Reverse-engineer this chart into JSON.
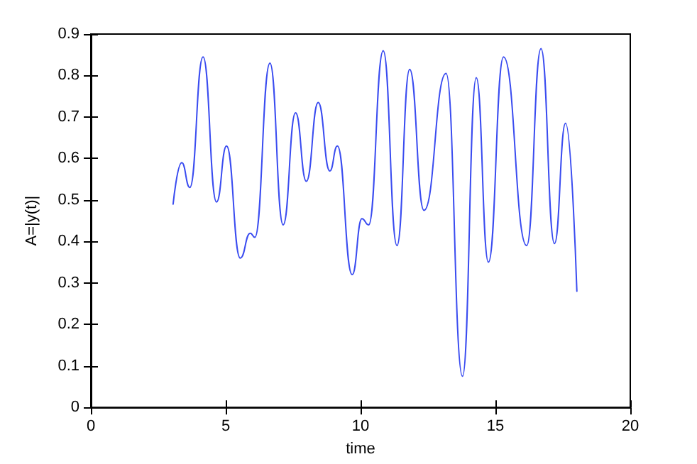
{
  "chart_data": {
    "type": "line",
    "xlabel": "time",
    "ylabel": "A=|y(t)|",
    "xlim": [
      0,
      20
    ],
    "xticks": [
      0,
      5,
      10,
      15,
      20
    ],
    "ylim": [
      0,
      0.9
    ],
    "yticks": [
      0,
      0.1,
      0.2,
      0.3,
      0.4,
      0.5,
      0.6,
      0.7,
      0.8,
      0.9
    ],
    "grid": false,
    "marker": "none",
    "line_style": "solid",
    "series": [
      {
        "color": "#3a4cf0",
        "x": [
          3.05,
          3.37,
          3.67,
          4.16,
          4.66,
          5.03,
          5.54,
          5.91,
          6.08,
          6.64,
          7.13,
          7.59,
          7.99,
          8.43,
          8.86,
          9.14,
          9.69,
          10.05,
          10.3,
          10.84,
          11.35,
          11.82,
          12.35,
          13.17,
          13.78,
          14.29,
          14.74,
          15.3,
          16.16,
          16.69,
          17.19,
          17.6,
          18.02
        ],
        "values": [
          0.49,
          0.59,
          0.53,
          0.845,
          0.495,
          0.63,
          0.36,
          0.42,
          0.41,
          0.83,
          0.44,
          0.71,
          0.545,
          0.735,
          0.57,
          0.63,
          0.32,
          0.455,
          0.44,
          0.86,
          0.39,
          0.815,
          0.475,
          0.805,
          0.075,
          0.795,
          0.35,
          0.845,
          0.39,
          0.865,
          0.395,
          0.685,
          0.28
        ]
      }
    ]
  }
}
